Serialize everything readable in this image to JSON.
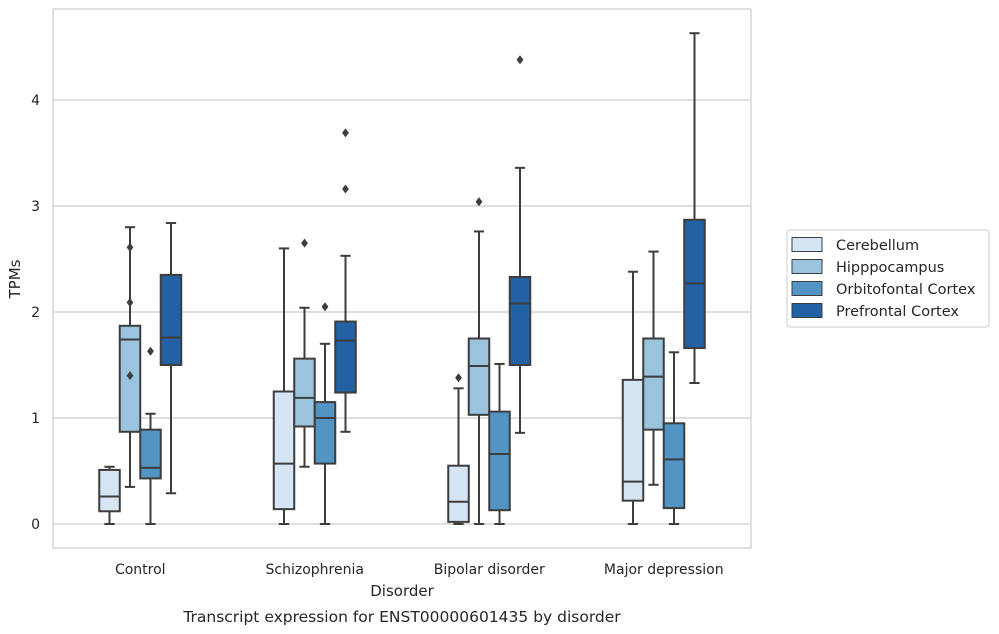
{
  "chart_data": {
    "type": "box",
    "title": "",
    "caption": "Transcript expression for ENST00000601435 by disorder",
    "xlabel": "Disorder",
    "ylabel": "TPMs",
    "ylim": [
      -0.22,
      4.86
    ],
    "yticks": [
      0,
      1,
      2,
      3,
      4
    ],
    "grid": "horizontal",
    "legend_position": "right",
    "categories": [
      "Control",
      "Schizophrenia",
      "Bipolar disorder",
      "Major depression"
    ],
    "series": [
      {
        "name": "Cerebellum",
        "color": "#d6e5f4",
        "boxes": [
          {
            "whisker_low": 0.0,
            "q1": 0.12,
            "median": 0.26,
            "q3": 0.51,
            "whisker_high": 0.54,
            "outliers": []
          },
          {
            "whisker_low": 0.0,
            "q1": 0.14,
            "median": 0.57,
            "q3": 1.25,
            "whisker_high": 2.6,
            "outliers": []
          },
          {
            "whisker_low": 0.0,
            "q1": 0.02,
            "median": 0.21,
            "q3": 0.55,
            "whisker_high": 1.28,
            "outliers": [
              1.38
            ]
          },
          {
            "whisker_low": 0.0,
            "q1": 0.22,
            "median": 0.4,
            "q3": 1.36,
            "whisker_high": 2.38,
            "outliers": []
          }
        ]
      },
      {
        "name": "Hipppocampus",
        "color": "#9ac3dd",
        "boxes": [
          {
            "whisker_low": 0.35,
            "q1": 0.87,
            "median": 1.74,
            "q3": 1.87,
            "whisker_high": 2.8,
            "outliers": [
              1.4,
              2.09,
              2.61
            ]
          },
          {
            "whisker_low": 0.54,
            "q1": 0.92,
            "median": 1.19,
            "q3": 1.56,
            "whisker_high": 2.04,
            "outliers": [
              2.65
            ]
          },
          {
            "whisker_low": 0.0,
            "q1": 1.03,
            "median": 1.49,
            "q3": 1.75,
            "whisker_high": 2.76,
            "outliers": [
              3.04
            ]
          },
          {
            "whisker_low": 0.37,
            "q1": 0.89,
            "median": 1.39,
            "q3": 1.75,
            "whisker_high": 2.57,
            "outliers": []
          }
        ]
      },
      {
        "name": "Orbitofontal Cortex",
        "color": "#5294c3",
        "boxes": [
          {
            "whisker_low": 0.0,
            "q1": 0.43,
            "median": 0.53,
            "q3": 0.89,
            "whisker_high": 1.04,
            "outliers": [
              1.63
            ]
          },
          {
            "whisker_low": 0.0,
            "q1": 0.57,
            "median": 1.0,
            "q3": 1.15,
            "whisker_high": 1.7,
            "outliers": [
              2.05
            ]
          },
          {
            "whisker_low": 0.0,
            "q1": 0.13,
            "median": 0.66,
            "q3": 1.06,
            "whisker_high": 1.51,
            "outliers": []
          },
          {
            "whisker_low": 0.0,
            "q1": 0.15,
            "median": 0.61,
            "q3": 0.95,
            "whisker_high": 1.62,
            "outliers": []
          }
        ]
      },
      {
        "name": "Prefrontal Cortex",
        "color": "#2361a5",
        "boxes": [
          {
            "whisker_low": 0.29,
            "q1": 1.5,
            "median": 1.76,
            "q3": 2.35,
            "whisker_high": 2.84,
            "outliers": []
          },
          {
            "whisker_low": 0.87,
            "q1": 1.24,
            "median": 1.73,
            "q3": 1.91,
            "whisker_high": 2.53,
            "outliers": [
              3.16,
              3.69
            ]
          },
          {
            "whisker_low": 0.86,
            "q1": 1.5,
            "median": 2.08,
            "q3": 2.33,
            "whisker_high": 3.36,
            "outliers": [
              4.38
            ]
          },
          {
            "whisker_low": 1.33,
            "q1": 1.66,
            "median": 2.27,
            "q3": 2.87,
            "whisker_high": 4.63,
            "outliers": []
          }
        ]
      }
    ]
  }
}
